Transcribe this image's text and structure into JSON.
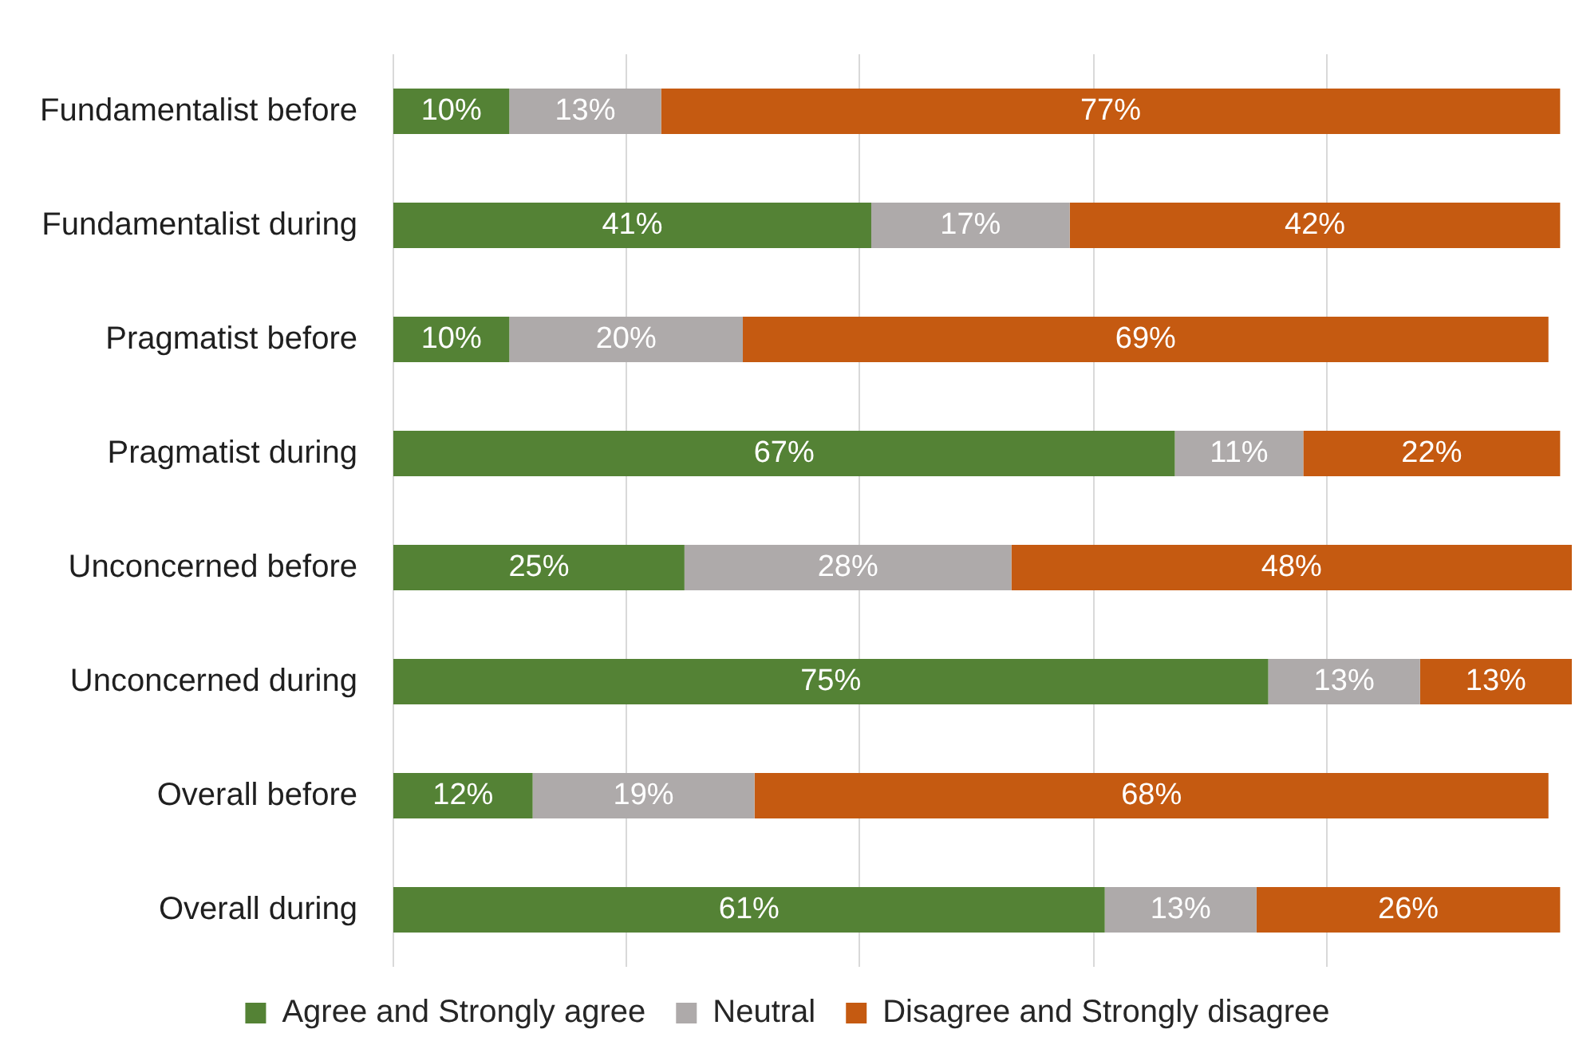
{
  "chart_data": {
    "type": "bar",
    "orientation": "horizontal",
    "stacked": true,
    "categories": [
      "Fundamentalist before",
      "Fundamentalist during",
      "Pragmatist before",
      "Pragmatist during",
      "Unconcerned before",
      "Unconcerned during",
      "Overall before",
      "Overall during"
    ],
    "series": [
      {
        "name": "Agree and Strongly agree",
        "color": "#548235",
        "values": [
          10,
          41,
          10,
          67,
          25,
          75,
          12,
          61
        ],
        "value_labels": [
          "10%",
          "41%",
          "10%",
          "67%",
          "25%",
          "75%",
          "12%",
          "61%"
        ]
      },
      {
        "name": "Neutral",
        "color": "#aeaaaa",
        "values": [
          13,
          17,
          20,
          11,
          28,
          13,
          19,
          13
        ],
        "value_labels": [
          "13%",
          "17%",
          "20%",
          "11%",
          "28%",
          "13%",
          "19%",
          "13%"
        ]
      },
      {
        "name": "Disagree and Strongly disagree",
        "color": "#c55a11",
        "values": [
          77,
          42,
          69,
          22,
          48,
          13,
          68,
          26
        ],
        "value_labels": [
          "77%",
          "42%",
          "69%",
          "22%",
          "48%",
          "13%",
          "68%",
          "26%"
        ]
      }
    ],
    "xlim": [
      0,
      101
    ],
    "xticks": [
      {
        "value": 0,
        "label": null
      },
      {
        "value": 20,
        "label": null
      },
      {
        "value": 40,
        "label": null
      },
      {
        "value": 60,
        "label": null
      },
      {
        "value": 80,
        "label": null
      }
    ],
    "grid": "x",
    "tick_labels": "y",
    "legend": "bottom"
  }
}
